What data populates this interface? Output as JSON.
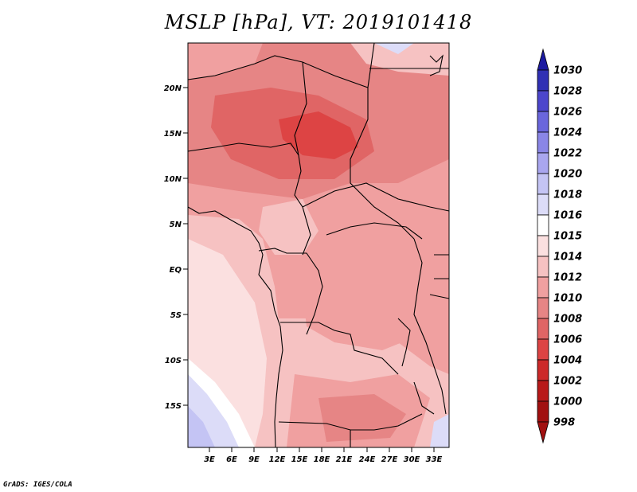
{
  "title": "MSLP [hPa], VT: 2019101418",
  "credit": "GrADS: IGES/COLA",
  "map": {
    "lat_labels": [
      "20N",
      "15N",
      "10N",
      "5N",
      "EQ",
      "5S",
      "10S",
      "15S"
    ],
    "lon_labels": [
      "3E",
      "6E",
      "9E",
      "12E",
      "15E",
      "18E",
      "21E",
      "24E",
      "27E",
      "30E",
      "33E"
    ]
  },
  "colorbar": {
    "levels": [
      "998",
      "1000",
      "1002",
      "1004",
      "1006",
      "1008",
      "1010",
      "1012",
      "1014",
      "1015",
      "1016",
      "1018",
      "1020",
      "1022",
      "1024",
      "1026",
      "1028",
      "1030"
    ],
    "colors": [
      "#a11010",
      "#b81a1a",
      "#cc2a2a",
      "#dd4444",
      "#e06565",
      "#e68585",
      "#f0a0a0",
      "#f6c2c2",
      "#fbe0e0",
      "#ffffff",
      "#dcdcf8",
      "#c4c4f4",
      "#a9a6ef",
      "#8a86e6",
      "#6a66dc",
      "#4c46cc",
      "#3030b4",
      "#1c1aa0"
    ]
  }
}
